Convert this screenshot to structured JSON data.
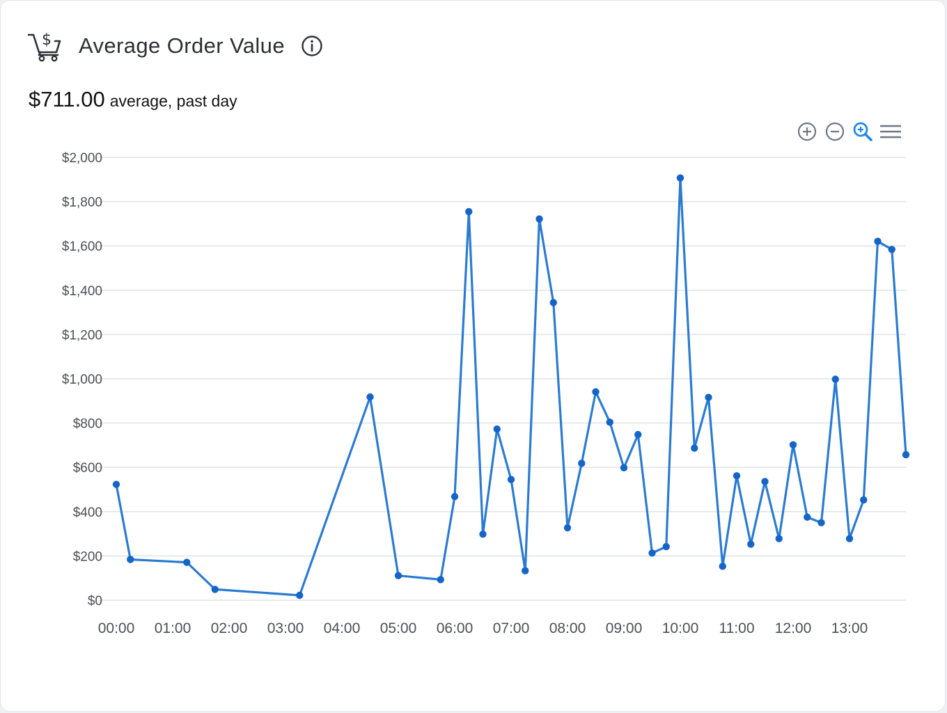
{
  "widget": {
    "title": "Average Order Value",
    "summary_value": "$711.00",
    "summary_suffix": "average, past day",
    "icons": {
      "title_icon": "shopping-cart-dollar-icon",
      "info_icon": "info-icon",
      "toolbar": [
        "zoom-in-icon",
        "zoom-out-icon",
        "selection-zoom-icon",
        "menu-icon"
      ]
    }
  },
  "colors": {
    "series": "#2b7bd1",
    "point": "#1565c9",
    "active_tool": "#1e88e5",
    "tool": "#6b7785",
    "grid": "#e2e4e8"
  },
  "chart_data": {
    "type": "line",
    "xlabel": "",
    "ylabel": "",
    "ylim": [
      0,
      2000
    ],
    "yticks": [
      "$0",
      "$200",
      "$400",
      "$600",
      "$800",
      "$1,000",
      "$1,200",
      "$1,400",
      "$1,600",
      "$1,800",
      "$2,000"
    ],
    "xticks": [
      "00:00",
      "01:00",
      "02:00",
      "03:00",
      "04:00",
      "05:00",
      "06:00",
      "07:00",
      "08:00",
      "09:00",
      "10:00",
      "11:00",
      "12:00",
      "13:00"
    ],
    "grid": true,
    "legend": false,
    "series": [
      {
        "x": [
          "00:00",
          "00:15",
          "01:15",
          "01:45",
          "03:15",
          "04:30",
          "05:00",
          "05:45",
          "06:00",
          "06:15",
          "06:30",
          "06:45",
          "07:00",
          "07:15",
          "07:30",
          "07:45",
          "08:00",
          "08:15",
          "08:30",
          "08:45",
          "09:00",
          "09:15",
          "09:30",
          "09:45",
          "10:00",
          "10:15",
          "10:30",
          "10:45",
          "11:00",
          "11:15",
          "11:30",
          "11:45",
          "12:00",
          "12:15",
          "12:30",
          "12:45",
          "13:00",
          "13:15",
          "13:30",
          "13:45",
          "14:00"
        ],
        "y": [
          523,
          184,
          171,
          49,
          22,
          918,
          111,
          93,
          468,
          1755,
          298,
          773,
          545,
          133,
          1722,
          1344,
          327,
          618,
          941,
          804,
          598,
          748,
          213,
          242,
          1907,
          687,
          916,
          153,
          562,
          253,
          536,
          278,
          702,
          375,
          350,
          998,
          278,
          453,
          1621,
          1584,
          657
        ]
      }
    ]
  }
}
